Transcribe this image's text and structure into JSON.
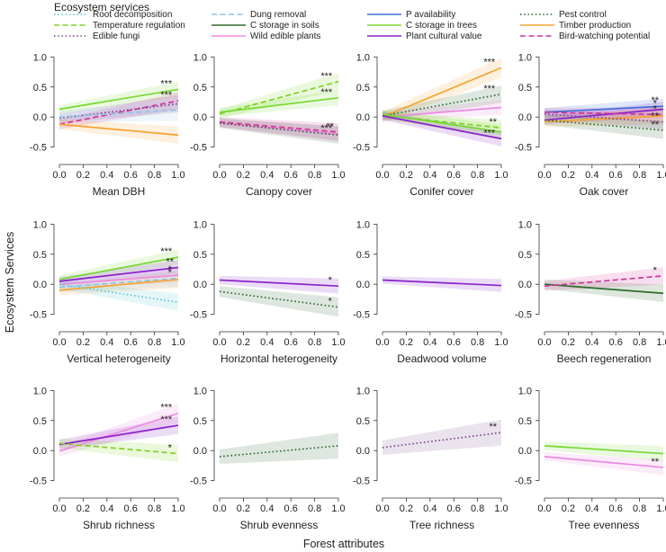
{
  "figure": {
    "legend_title": "Ecosystem services",
    "y_axis_label": "Ecosystem Services",
    "x_axis_label": "Forest attributes"
  },
  "services": [
    {
      "key": "root",
      "name": "Root decomposition",
      "color": "#5bc8d8",
      "dash": "dotted"
    },
    {
      "key": "temp",
      "name": "Temperature regulation",
      "color": "#7ed321",
      "dash": "dashed"
    },
    {
      "key": "fungi",
      "name": "Edible fungi",
      "color": "#7a4a8c",
      "dash": "dotted"
    },
    {
      "key": "dung",
      "name": "Dung removal",
      "color": "#8ec4e8",
      "dash": "dashed"
    },
    {
      "key": "csoil",
      "name": "C storage in soils",
      "color": "#2e6b2e",
      "dash": "solid"
    },
    {
      "key": "wild",
      "name": "Wild edible plants",
      "color": "#ee88e0",
      "dash": "solid"
    },
    {
      "key": "p",
      "name": "P availability",
      "color": "#3a6fd8",
      "dash": "solid"
    },
    {
      "key": "ctrees",
      "name": "C storage in trees",
      "color": "#77d932",
      "dash": "solid"
    },
    {
      "key": "plant",
      "name": "Plant cultural value",
      "color": "#8a22cc",
      "dash": "solid"
    },
    {
      "key": "pest",
      "name": "Pest control",
      "color": "#2f6a35",
      "dash": "dotted"
    },
    {
      "key": "timber",
      "name": "Timber production",
      "color": "#f5a431",
      "dash": "solid"
    },
    {
      "key": "bird",
      "name": "Bird-watching potential",
      "color": "#d6339a",
      "dash": "dashed"
    }
  ],
  "chart_data": {
    "type": "line",
    "xlim": [
      0,
      1
    ],
    "ylim": [
      -0.7,
      1.05
    ],
    "x_ticks": [
      "0.0",
      "0.2",
      "0.4",
      "0.6",
      "0.8",
      "1.0"
    ],
    "y_ticks": [
      "-0.5",
      "0.0",
      "0.5",
      "1.0"
    ],
    "panels": [
      {
        "xlabel": "Mean DBH",
        "series": [
          {
            "service": "ctrees",
            "y0": 0.13,
            "y1": 0.46,
            "band": 0.07,
            "stars": "***"
          },
          {
            "service": "bird",
            "y0": -0.12,
            "y1": 0.27,
            "band": 0.08,
            "stars": "***"
          },
          {
            "service": "fungi",
            "y0": -0.02,
            "y1": 0.22,
            "band": 0.08,
            "stars": ""
          },
          {
            "service": "dung",
            "y0": 0.0,
            "y1": 0.12,
            "band": 0.1,
            "stars": ""
          },
          {
            "service": "timber",
            "y0": -0.12,
            "y1": -0.3,
            "band": 0.08,
            "stars": ""
          }
        ]
      },
      {
        "xlabel": "Canopy cover",
        "series": [
          {
            "service": "temp",
            "y0": 0.05,
            "y1": 0.59,
            "band": 0.08,
            "stars": "***"
          },
          {
            "service": "ctrees",
            "y0": 0.08,
            "y1": 0.32,
            "band": 0.07,
            "stars": "***"
          },
          {
            "service": "wild",
            "y0": -0.1,
            "y1": -0.28,
            "band": 0.07,
            "stars": "***"
          },
          {
            "service": "bird",
            "y0": -0.08,
            "y1": -0.25,
            "band": 0.08,
            "stars": "**"
          },
          {
            "service": "pest",
            "y0": -0.1,
            "y1": -0.3,
            "band": 0.08,
            "stars": ""
          }
        ]
      },
      {
        "xlabel": "Conifer cover",
        "series": [
          {
            "service": "timber",
            "y0": 0.0,
            "y1": 0.82,
            "band": 0.09,
            "stars": "***"
          },
          {
            "service": "pest",
            "y0": 0.02,
            "y1": 0.38,
            "band": 0.08,
            "stars": "***"
          },
          {
            "service": "wild",
            "y0": 0.0,
            "y1": 0.16,
            "band": 0.07,
            "stars": ""
          },
          {
            "service": "temp",
            "y0": 0.03,
            "y1": -0.18,
            "band": 0.07,
            "stars": "**"
          },
          {
            "service": "ctrees",
            "y0": 0.05,
            "y1": -0.25,
            "band": 0.07,
            "stars": ""
          },
          {
            "service": "plant",
            "y0": 0.02,
            "y1": -0.36,
            "band": 0.07,
            "stars": "***"
          }
        ]
      },
      {
        "xlabel": "Oak cover",
        "series": [
          {
            "service": "p",
            "y0": 0.08,
            "y1": 0.18,
            "band": 0.07,
            "stars": "**"
          },
          {
            "service": "plant",
            "y0": -0.05,
            "y1": 0.13,
            "band": 0.07,
            "stars": "*"
          },
          {
            "service": "bird",
            "y0": 0.08,
            "y1": 0.04,
            "band": 0.07,
            "stars": "*"
          },
          {
            "service": "timber",
            "y0": -0.08,
            "y1": 0.02,
            "band": 0.08,
            "stars": ""
          },
          {
            "service": "fungi",
            "y0": 0.05,
            "y1": -0.08,
            "band": 0.07,
            "stars": "**"
          },
          {
            "service": "pest",
            "y0": -0.05,
            "y1": -0.22,
            "band": 0.08,
            "stars": "**"
          }
        ]
      },
      {
        "xlabel": "Vertical heterogeneity",
        "series": [
          {
            "service": "ctrees",
            "y0": 0.08,
            "y1": 0.45,
            "band": 0.07,
            "stars": "***"
          },
          {
            "service": "plant",
            "y0": 0.05,
            "y1": 0.28,
            "band": 0.07,
            "stars": "**"
          },
          {
            "service": "wild",
            "y0": 0.0,
            "y1": 0.15,
            "band": 0.07,
            "stars": "*"
          },
          {
            "service": "timber",
            "y0": -0.1,
            "y1": 0.08,
            "band": 0.08,
            "stars": ""
          },
          {
            "service": "root",
            "y0": 0.0,
            "y1": -0.3,
            "band": 0.08,
            "stars": ""
          },
          {
            "service": "dung",
            "y0": -0.05,
            "y1": 0.1,
            "band": 0.08,
            "stars": "*"
          }
        ]
      },
      {
        "xlabel": "Horizontal heterogeneity",
        "series": [
          {
            "service": "plant",
            "y0": 0.07,
            "y1": -0.03,
            "band": 0.07,
            "stars": "*"
          },
          {
            "service": "pest",
            "y0": -0.12,
            "y1": -0.38,
            "band": 0.09,
            "stars": "*"
          }
        ]
      },
      {
        "xlabel": "Deadwood volume",
        "series": [
          {
            "service": "plant",
            "y0": 0.07,
            "y1": -0.02,
            "band": 0.06,
            "stars": ""
          }
        ]
      },
      {
        "xlabel": "Beech regeneration",
        "series": [
          {
            "service": "csoil",
            "y0": 0.0,
            "y1": -0.15,
            "band": 0.08,
            "stars": ""
          },
          {
            "service": "bird",
            "y0": -0.03,
            "y1": 0.14,
            "band": 0.08,
            "stars": "*"
          }
        ]
      },
      {
        "xlabel": "Shrub richness",
        "series": [
          {
            "service": "wild",
            "y0": -0.01,
            "y1": 0.62,
            "band": 0.09,
            "stars": "***"
          },
          {
            "service": "plant",
            "y0": 0.1,
            "y1": 0.42,
            "band": 0.08,
            "stars": "***"
          },
          {
            "service": "temp",
            "y0": 0.12,
            "y1": -0.05,
            "band": 0.08,
            "stars": "*"
          }
        ]
      },
      {
        "xlabel": "Shrub evenness",
        "series": [
          {
            "service": "pest",
            "y0": -0.1,
            "y1": 0.08,
            "band": 0.12,
            "stars": ""
          }
        ]
      },
      {
        "xlabel": "Tree richness",
        "series": [
          {
            "service": "fungi",
            "y0": 0.05,
            "y1": 0.3,
            "band": 0.12,
            "stars": "**"
          }
        ]
      },
      {
        "xlabel": "Tree evenness",
        "series": [
          {
            "service": "ctrees",
            "y0": 0.08,
            "y1": -0.05,
            "band": 0.07,
            "stars": ""
          },
          {
            "service": "wild",
            "y0": -0.1,
            "y1": -0.28,
            "band": 0.07,
            "stars": "**"
          }
        ]
      }
    ]
  }
}
